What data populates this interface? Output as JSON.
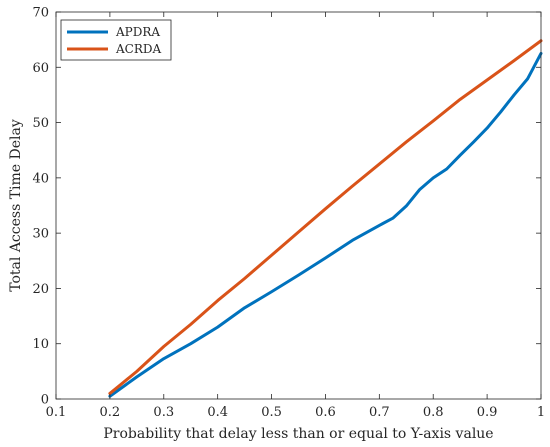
{
  "chart_data": {
    "type": "line",
    "xlabel": "Probability that delay less than or equal to Y-axis value",
    "ylabel": "Total Access Time Delay",
    "xlim": [
      0.1,
      1
    ],
    "ylim": [
      0,
      70
    ],
    "xticks": [
      0.1,
      0.2,
      0.3,
      0.4,
      0.5,
      0.6,
      0.7,
      0.8,
      0.9,
      1
    ],
    "xtick_labels": [
      "0.1",
      "0.2",
      "0.3",
      "0.4",
      "0.5",
      "0.6",
      "0.7",
      "0.8",
      "0.9",
      "1"
    ],
    "yticks": [
      0,
      10,
      20,
      30,
      40,
      50,
      60,
      70
    ],
    "ytick_labels": [
      "0",
      "10",
      "20",
      "30",
      "40",
      "50",
      "60",
      "70"
    ],
    "grid": false,
    "legend_position": "top-left",
    "series": [
      {
        "name": "APDRA",
        "color": "#0072BD",
        "x": [
          0.2,
          0.25,
          0.3,
          0.35,
          0.4,
          0.45,
          0.5,
          0.55,
          0.6,
          0.65,
          0.7,
          0.725,
          0.75,
          0.775,
          0.8,
          0.825,
          0.85,
          0.875,
          0.9,
          0.925,
          0.95,
          0.975,
          1.0
        ],
        "y": [
          0.5,
          4.0,
          7.3,
          10.0,
          13.0,
          16.5,
          19.4,
          22.4,
          25.5,
          28.7,
          31.4,
          32.7,
          34.9,
          37.9,
          40.0,
          41.6,
          44.1,
          46.5,
          49.0,
          51.9,
          55.0,
          57.9,
          62.5
        ]
      },
      {
        "name": "ACRDA",
        "color": "#D95319",
        "x": [
          0.2,
          0.25,
          0.3,
          0.35,
          0.4,
          0.45,
          0.5,
          0.55,
          0.6,
          0.65,
          0.7,
          0.75,
          0.8,
          0.85,
          0.9,
          0.95,
          1.0
        ],
        "y": [
          1.0,
          5.0,
          9.5,
          13.5,
          17.8,
          21.8,
          26.0,
          30.2,
          34.4,
          38.5,
          42.5,
          46.5,
          50.3,
          54.2,
          57.7,
          61.2,
          64.8
        ]
      }
    ]
  }
}
